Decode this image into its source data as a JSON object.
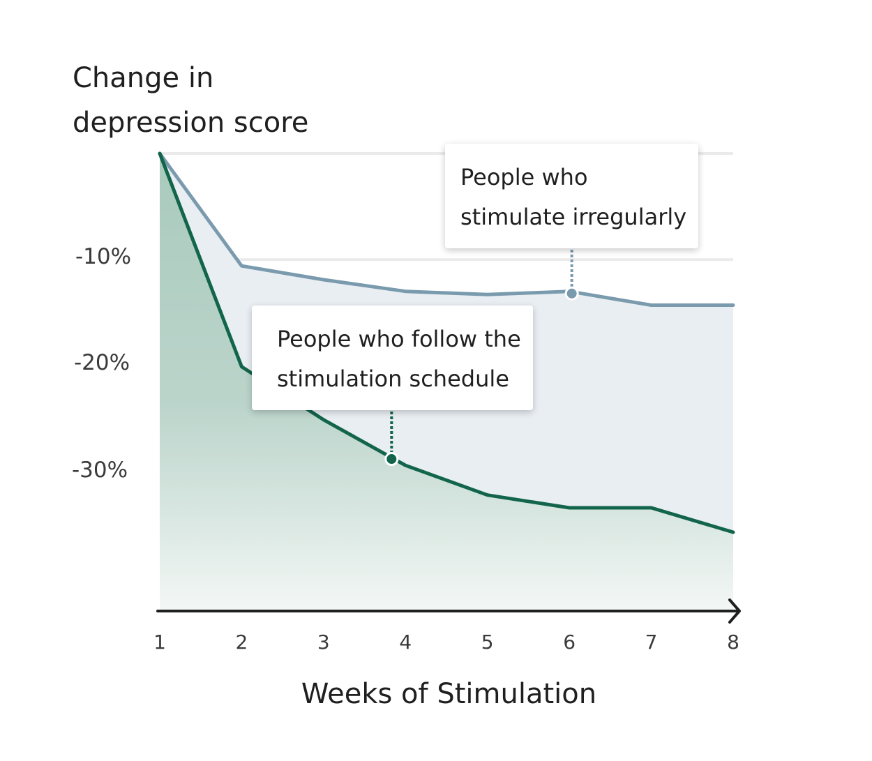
{
  "chart_data": {
    "type": "area",
    "ylabel": [
      "Change in",
      "depression score"
    ],
    "xlabel": "Weeks of Stimulation",
    "x": [
      1,
      2,
      3,
      4,
      5,
      6,
      7,
      8
    ],
    "y_ticks": [
      {
        "value": -10,
        "label": "-10%"
      },
      {
        "value": -20,
        "label": "-20%"
      },
      {
        "value": -30,
        "label": "-30%"
      }
    ],
    "x_ticks": [
      "1",
      "2",
      "3",
      "4",
      "5",
      "6",
      "7",
      "8"
    ],
    "ylim": [
      -43,
      0
    ],
    "xlim": [
      1,
      8
    ],
    "grid": true,
    "series": [
      {
        "key": "irregular",
        "values": [
          0,
          -10.6,
          -11.9,
          -13.0,
          -13.3,
          -13.0,
          -14.3,
          -14.3
        ],
        "color": "#7a9aad",
        "fill": "#e9eef3"
      },
      {
        "key": "schedule",
        "values": [
          0,
          -20.1,
          -25.1,
          -29.4,
          -32.2,
          -33.4,
          -33.4,
          -35.7
        ],
        "color": "#12654a",
        "fill": "#a9cabd"
      }
    ],
    "annotations": [
      {
        "series": "irregular",
        "x": 6.03,
        "y": -13.2,
        "text": [
          "People who",
          "stimulate irregularly"
        ]
      },
      {
        "series": "schedule",
        "x": 3.83,
        "y": -28.8,
        "text": [
          "People who follow the",
          "stimulation schedule"
        ]
      }
    ]
  }
}
